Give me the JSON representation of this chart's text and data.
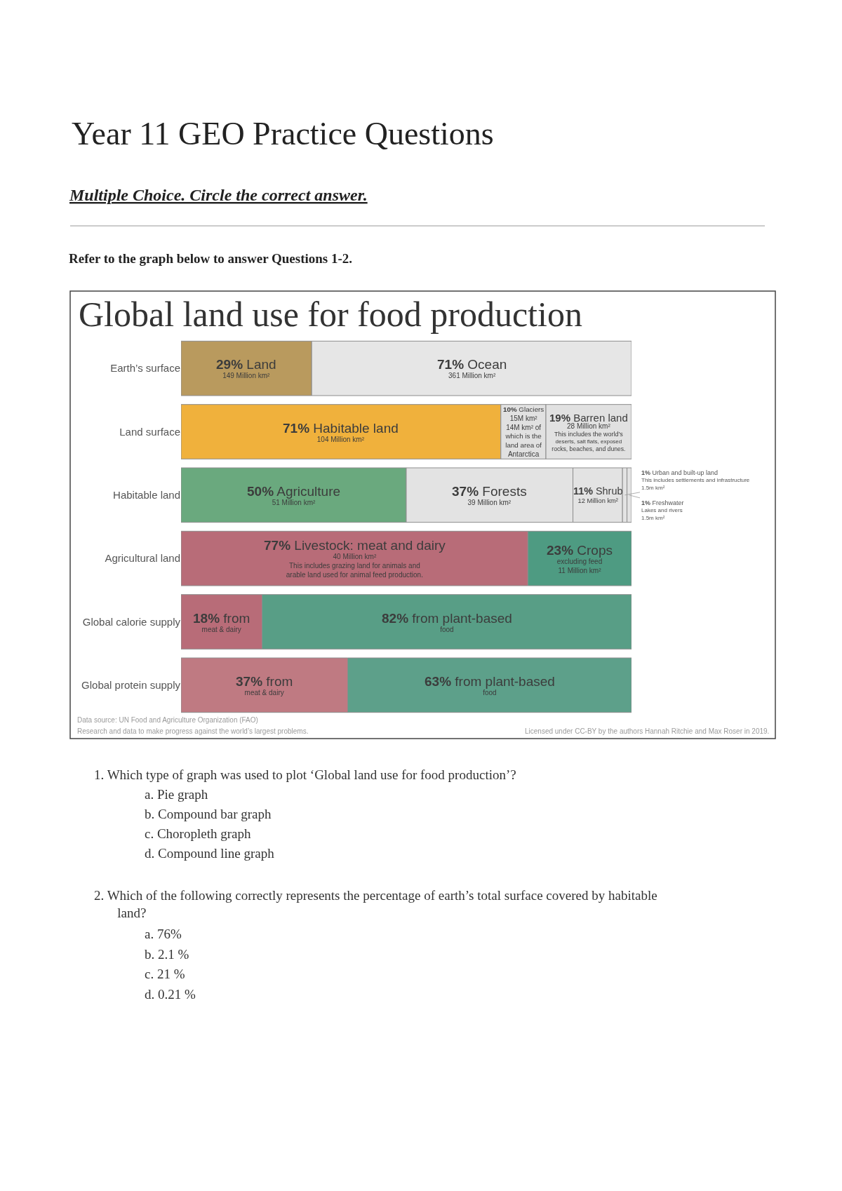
{
  "chart_data": {
    "type": "bar",
    "orientation": "horizontal",
    "stacked": true,
    "tick_labels": "y",
    "xlim": [
      0,
      100
    ],
    "title": "Global land use for food production",
    "categories": [
      "Earth’s surface",
      "Land surface",
      "Habitable land",
      "Agricultural land",
      "Global calorie supply",
      "Global protein supply"
    ],
    "series": [
      {
        "colors": [
          "#b99a5e",
          "#f0b13c",
          "#6aa97e",
          "#b86c78",
          "#b86c78",
          "#bf7a82"
        ],
        "values": [
          29,
          71,
          50,
          77,
          18,
          37
        ],
        "value_labels": [
          "29% Land\n149 Million km²",
          "71% Habitable land\n104 Million km²",
          "50% Agriculture\n51 Million km²",
          "77% Livestock: meat and dairy\n40 Million km²\nThis includes grazing land for animals and\narable land used for animal feed production.",
          "18% from\nmeat & dairy",
          "37% from\nmeat & dairy"
        ]
      },
      {
        "colors": [
          "#e6e6e6",
          "#e1e1e1",
          "#e3e3e3",
          "#4e9b82",
          "#589e86",
          "#5da08a"
        ],
        "values": [
          71,
          10,
          37,
          23,
          82,
          63
        ],
        "value_labels": [
          "71% Ocean\n361 Million km²",
          "10% Glaciers\n15M km²\n14M km² of\nwhich is the\nland area of\nAntarctica",
          "37% Forests\n39 Million km²",
          "23% Crops\nexcluding feed\n11 Million km²",
          "82% from plant-based\nfood",
          "63% from plant-based\nfood"
        ]
      },
      {
        "colors": [
          null,
          "#e1e1e1",
          "#e3e3e3",
          null,
          null,
          null
        ],
        "values": [
          null,
          19,
          11,
          null,
          null,
          null
        ],
        "value_labels": [
          null,
          "19% Barren land\n28 Million km²\nThis includes the world’s\ndeserts, salt flats, exposed\nrocks, beaches, and dunes.",
          "11% Shrub\n12 Million km²",
          null,
          null,
          null
        ]
      },
      {
        "colors": [
          null,
          null,
          "#e3e3e3",
          null,
          null,
          null
        ],
        "values": [
          null,
          null,
          1,
          null,
          null,
          null
        ],
        "value_labels": [
          null,
          null,
          "1% Urban and built-up land\nThis includes settlements and infrastructure\n1.5m km²",
          null,
          null,
          null
        ]
      },
      {
        "colors": [
          null,
          null,
          "#e3e3e3",
          null,
          null,
          null
        ],
        "values": [
          null,
          null,
          1,
          null,
          null,
          null
        ],
        "value_labels": [
          null,
          null,
          "1% Freshwater\nLakes and rivers\n1.5m km²",
          null,
          null,
          null
        ]
      }
    ],
    "annotations": [
      "Year 11 GEO Practice Questions",
      "Multiple Choice. Circle the correct answer.",
      "Refer to the graph below to answer Questions 1-2.",
      "Data source: UN Food and Agriculture Organization (FAO)",
      "Research and data to make progress against the world’s largest problems.",
      "Licensed under CC-BY by the authors Hannah Ritchie and Max Roser in 2019.",
      "1. Which type of graph was used to plot ‘Global land use for food production’?",
      "a. Pie graph",
      "b. Compound bar graph",
      "c. Choropleth graph",
      "d. Compound line graph",
      "2. Which of the following correctly represents the percentage of earth’s total surface covered by habitable land?",
      "a. 76%",
      "b. 2.1 %",
      "c. 21 %",
      "d. 0.21 %"
    ]
  }
}
